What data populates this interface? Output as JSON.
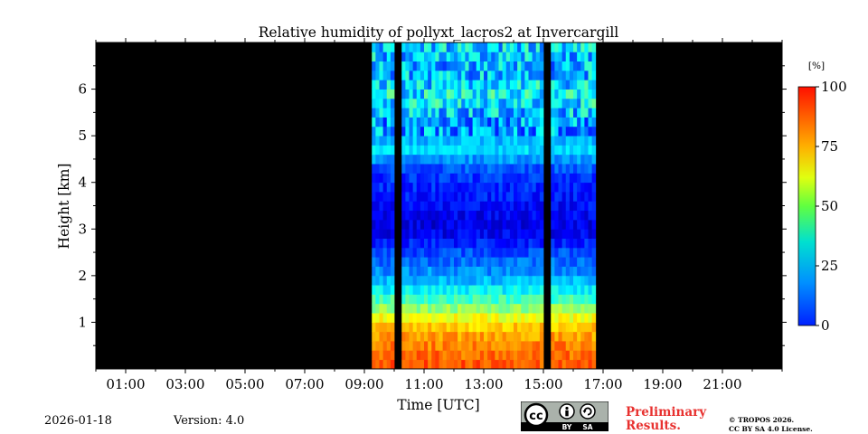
{
  "chart_data": {
    "type": "heatmap",
    "title": "Relative humidity of pollyxt_lacros2 at Invercargill",
    "xlabel": "Time [UTC]",
    "ylabel": "Height [km]",
    "x_range_hours": [
      0,
      23
    ],
    "x_tick_hours": [
      1,
      3,
      5,
      7,
      9,
      11,
      13,
      15,
      17,
      19,
      21
    ],
    "x_tick_labels": [
      "01:00",
      "03:00",
      "05:00",
      "07:00",
      "09:00",
      "11:00",
      "13:00",
      "15:00",
      "17:00",
      "19:00",
      "21:00"
    ],
    "ylim_km": [
      0,
      7
    ],
    "y_ticks": [
      1,
      2,
      3,
      4,
      5,
      6
    ],
    "y_tick_labels": [
      "1",
      "2",
      "3",
      "4",
      "5",
      "6"
    ],
    "colorbar": {
      "unit_label": "[%]",
      "range": [
        0,
        100
      ],
      "ticks": [
        0,
        25,
        50,
        75,
        100
      ],
      "tick_labels": [
        "0",
        "25",
        "50",
        "75",
        "100"
      ],
      "colormap": "jet"
    },
    "data_window_hours": [
      9.25,
      16.75
    ],
    "gap_hours": [
      [
        10.0,
        10.2
      ],
      [
        15.05,
        15.25
      ]
    ],
    "humidity_profile": [
      {
        "height_km": 0.0,
        "rh": 80
      },
      {
        "height_km": 0.6,
        "rh": 74
      },
      {
        "height_km": 1.0,
        "rh": 66
      },
      {
        "height_km": 1.3,
        "rh": 52
      },
      {
        "height_km": 1.6,
        "rh": 40
      },
      {
        "height_km": 2.0,
        "rh": 28
      },
      {
        "height_km": 2.5,
        "rh": 20
      },
      {
        "height_km": 3.0,
        "rh": 9
      },
      {
        "height_km": 3.6,
        "rh": 14
      },
      {
        "height_km": 4.2,
        "rh": 18
      },
      {
        "height_km": 4.7,
        "rh": 34
      },
      {
        "height_km": 5.2,
        "rh": 26
      },
      {
        "height_km": 5.8,
        "rh": 38
      },
      {
        "height_km": 6.4,
        "rh": 30
      },
      {
        "height_km": 7.0,
        "rh": 35
      }
    ]
  },
  "footer": {
    "date": "2026-01-18",
    "version": "Version: 4.0",
    "preliminary_line1": "Preliminary",
    "preliminary_line2": "Results.",
    "copyright_line1": "© TROPOS 2026.",
    "copyright_line2": "CC BY SA 4.0 License.",
    "cc_label": "cc",
    "by_label": "BY",
    "sa_label": "SA"
  },
  "colors": {
    "background_no_data": "#000000",
    "preliminary_text": "#e8312f",
    "badge_bg": "#aab2ab"
  }
}
